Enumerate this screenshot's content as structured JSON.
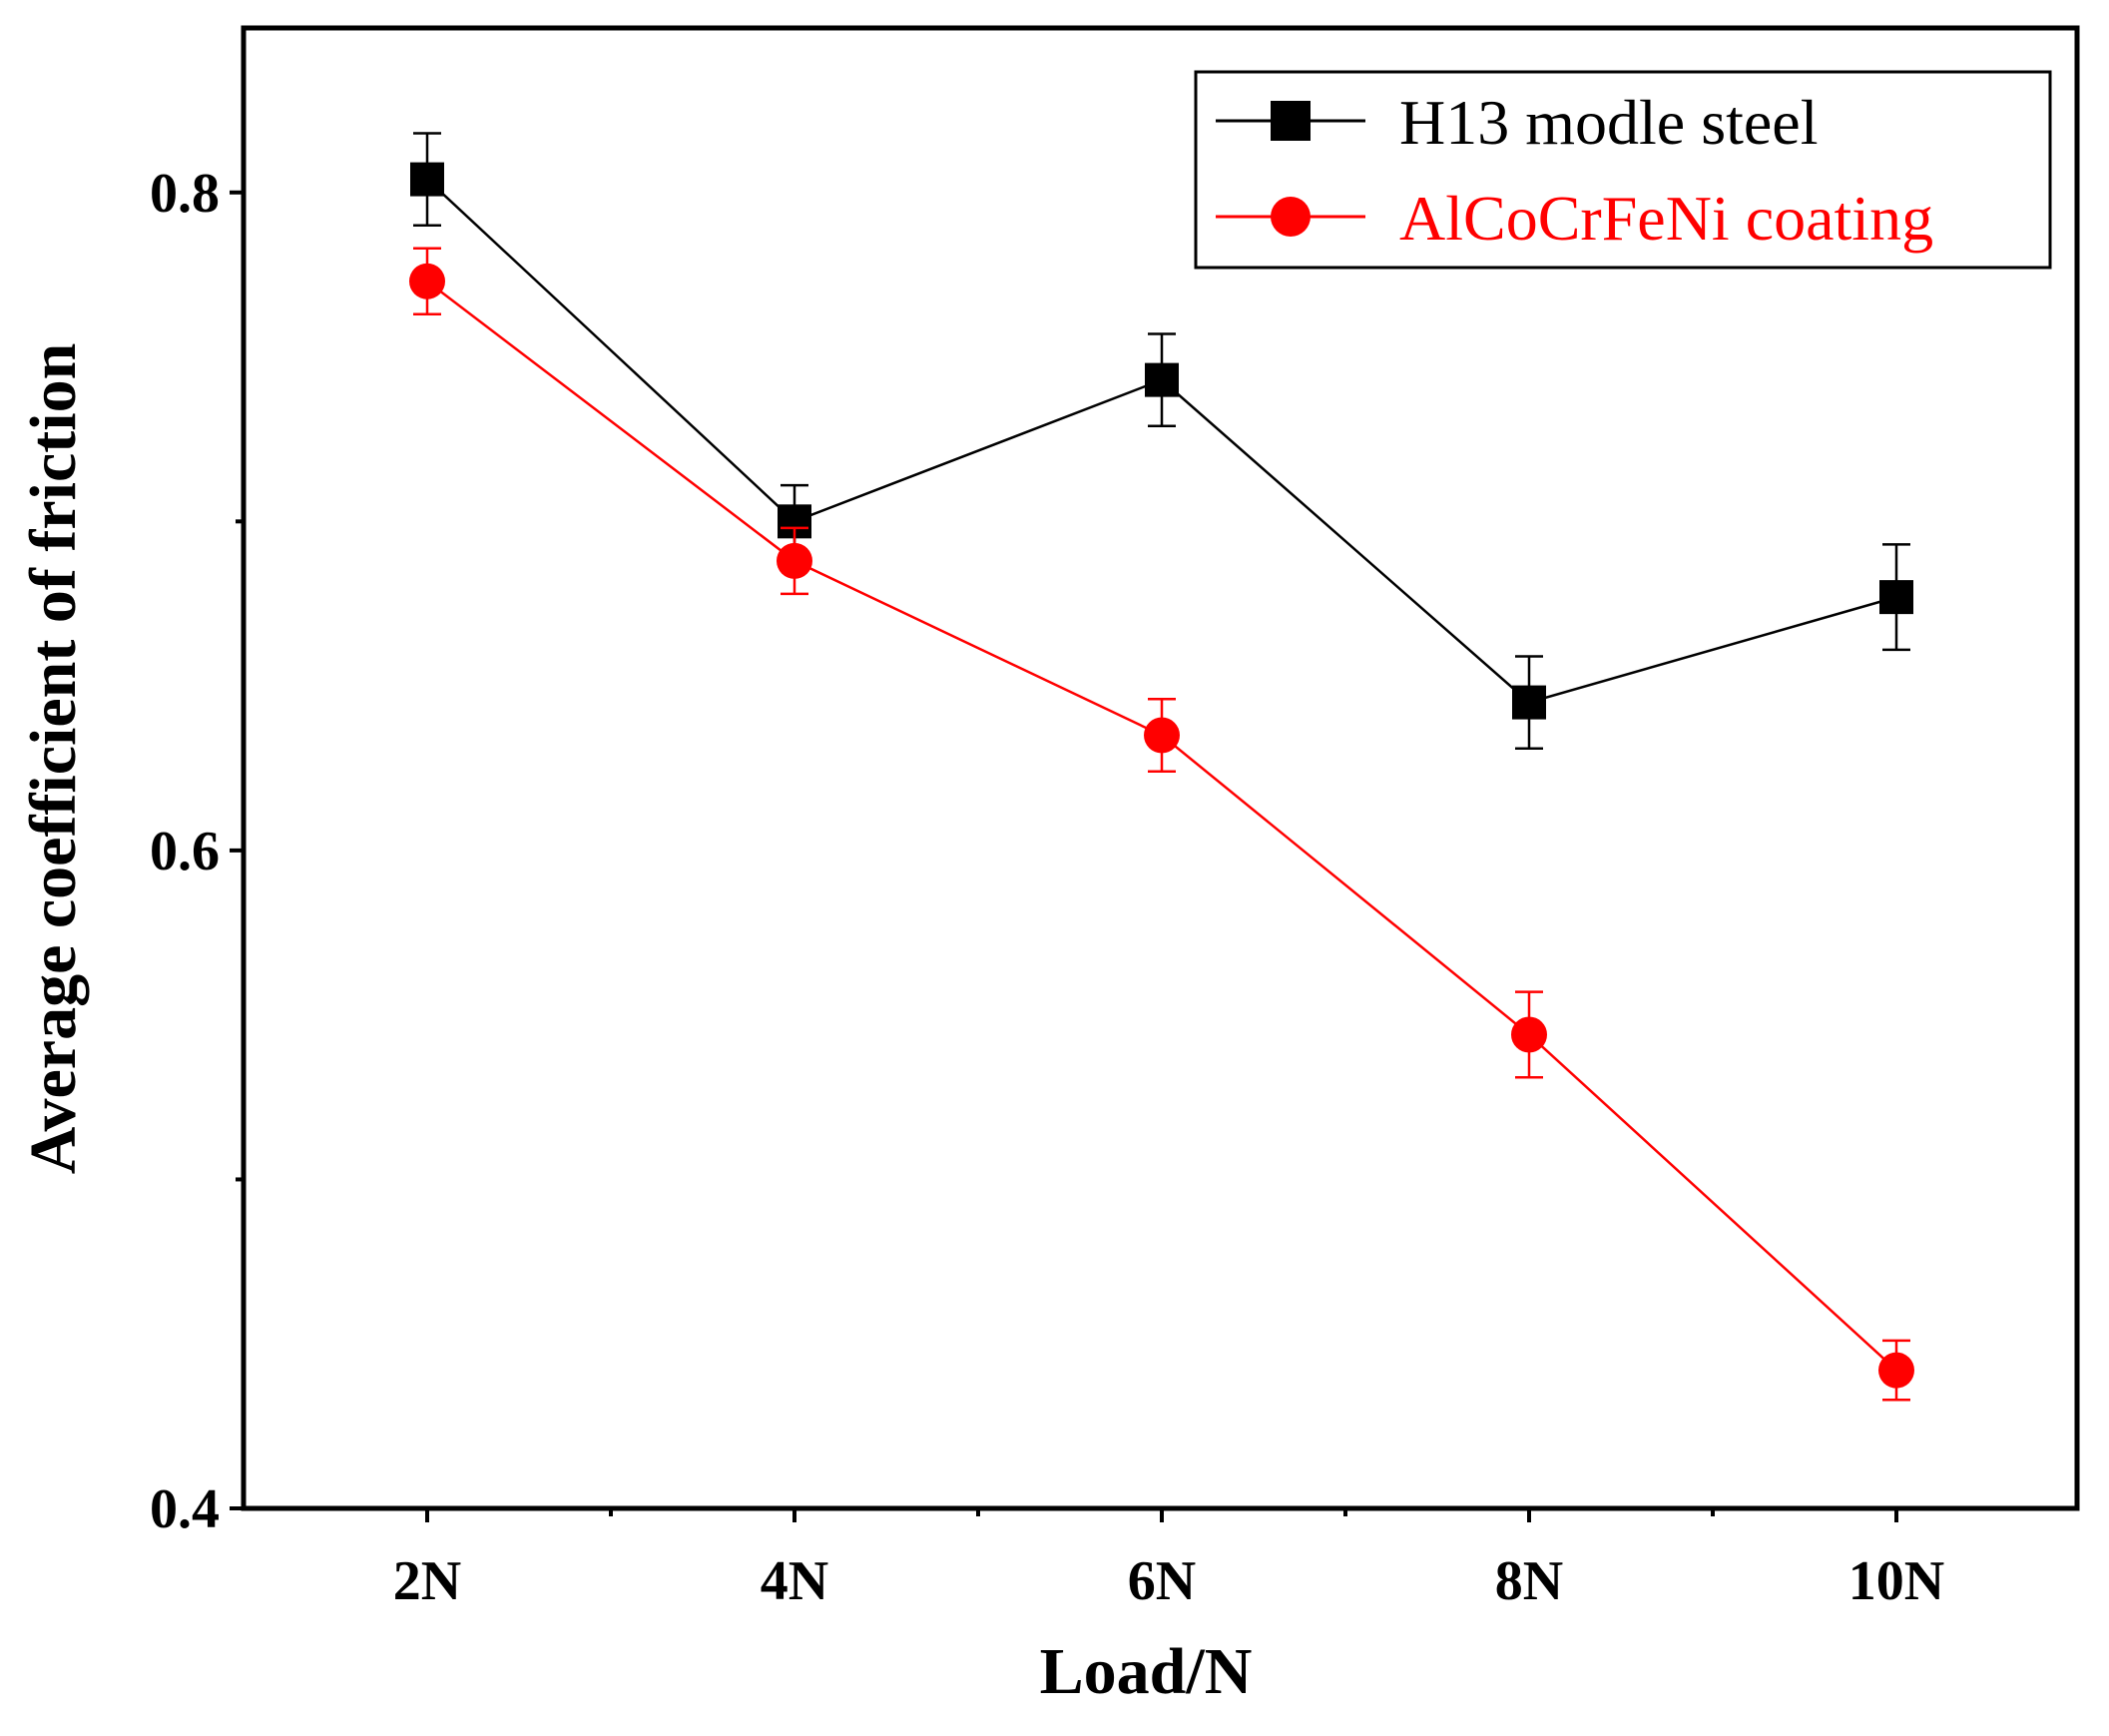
{
  "chart_data": {
    "type": "line",
    "title": "",
    "xlabel": "Load/N",
    "ylabel": "Average coefficient of friction",
    "categories": [
      "2N",
      "4N",
      "6N",
      "8N",
      "10N"
    ],
    "ylim": [
      0.4,
      0.85
    ],
    "yticks": [
      0.4,
      0.6,
      0.8
    ],
    "ytick_labels": [
      "0.4",
      "0.6",
      "0.8"
    ],
    "grid": false,
    "legend_position": "top-right",
    "series": [
      {
        "name": "H13 modle steel",
        "color": "#000000",
        "marker": "square",
        "values": [
          0.804,
          0.7,
          0.743,
          0.645,
          0.677
        ],
        "errors": [
          0.014,
          0.011,
          0.014,
          0.014,
          0.016
        ]
      },
      {
        "name": "AlCoCrFeNi coating",
        "color": "#ff0000",
        "marker": "circle",
        "values": [
          0.773,
          0.688,
          0.635,
          0.544,
          0.442
        ],
        "errors": [
          0.01,
          0.01,
          0.011,
          0.013,
          0.009
        ]
      }
    ]
  }
}
